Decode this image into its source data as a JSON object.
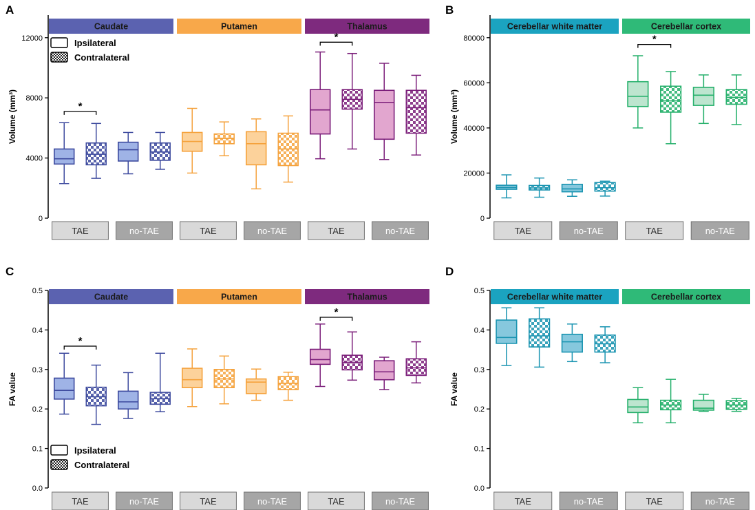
{
  "figure": {
    "legend_ipsi": "Ipsilateral",
    "legend_contra": "Contralateral",
    "group_labels": [
      "TAE",
      "no-TAE"
    ]
  },
  "colors": {
    "caudate": {
      "stroke": "#3d4a9e",
      "fill": "#9fb3e6",
      "header": "#5b62b0"
    },
    "putamen": {
      "stroke": "#f5a23c",
      "fill": "#fcd29b",
      "header": "#f8a84a"
    },
    "thalamus": {
      "stroke": "#7b1e7a",
      "fill": "#e2a6cf",
      "header": "#7e2a7e"
    },
    "cwm": {
      "stroke": "#1a94b1",
      "fill": "#86c8dd",
      "header": "#1ba3c0"
    },
    "cctx": {
      "stroke": "#25b06b",
      "fill": "#bde5cf",
      "header": "#2fba78"
    },
    "tae_box": "#d9d9d9",
    "notae_box": "#a6a6a6"
  },
  "chart_data": [
    {
      "id": "A",
      "panel_label": "A",
      "type": "box",
      "ylabel": "Volume (mm³)",
      "ylim": [
        0,
        13500
      ],
      "yticks": [
        0,
        4000,
        8000,
        12000
      ],
      "ytick_labels": [
        "0",
        "4000",
        "8000",
        "12000"
      ],
      "regions": [
        {
          "name": "Caudate",
          "color_key": "caudate"
        },
        {
          "name": "Putamen",
          "color_key": "putamen"
        },
        {
          "name": "Thalamus",
          "color_key": "thalamus"
        }
      ],
      "groups": [
        "TAE",
        "no-TAE",
        "TAE",
        "no-TAE",
        "TAE",
        "no-TAE"
      ],
      "boxes": [
        {
          "region": "Caudate",
          "group": "TAE",
          "side": "ipsi",
          "min": 2300,
          "q1": 3600,
          "median": 3950,
          "q3": 4600,
          "max": 6350
        },
        {
          "region": "Caudate",
          "group": "TAE",
          "side": "contra",
          "min": 2650,
          "q1": 3550,
          "median": 4250,
          "q3": 5000,
          "max": 6300
        },
        {
          "region": "Caudate",
          "group": "no-TAE",
          "side": "ipsi",
          "min": 2950,
          "q1": 3800,
          "median": 4550,
          "q3": 5050,
          "max": 5700
        },
        {
          "region": "Caudate",
          "group": "no-TAE",
          "side": "contra",
          "min": 3250,
          "q1": 3850,
          "median": 4400,
          "q3": 5000,
          "max": 5700
        },
        {
          "region": "Putamen",
          "group": "TAE",
          "side": "ipsi",
          "min": 3000,
          "q1": 4450,
          "median": 5100,
          "q3": 5700,
          "max": 7300
        },
        {
          "region": "Putamen",
          "group": "TAE",
          "side": "contra",
          "min": 4150,
          "q1": 4950,
          "median": 5300,
          "q3": 5600,
          "max": 6400
        },
        {
          "region": "Putamen",
          "group": "no-TAE",
          "side": "ipsi",
          "min": 1950,
          "q1": 3550,
          "median": 4950,
          "q3": 5750,
          "max": 6600
        },
        {
          "region": "Putamen",
          "group": "no-TAE",
          "side": "contra",
          "min": 2400,
          "q1": 3500,
          "median": 4600,
          "q3": 5650,
          "max": 6800
        },
        {
          "region": "Thalamus",
          "group": "TAE",
          "side": "ipsi",
          "min": 3950,
          "q1": 5600,
          "median": 7200,
          "q3": 8550,
          "max": 11050
        },
        {
          "region": "Thalamus",
          "group": "TAE",
          "side": "contra",
          "min": 4600,
          "q1": 7250,
          "median": 7900,
          "q3": 8550,
          "max": 10950
        },
        {
          "region": "Thalamus",
          "group": "no-TAE",
          "side": "ipsi",
          "min": 3900,
          "q1": 5250,
          "median": 7700,
          "q3": 8500,
          "max": 10300
        },
        {
          "region": "Thalamus",
          "group": "no-TAE",
          "side": "contra",
          "min": 4200,
          "q1": 5650,
          "median": 7350,
          "q3": 8500,
          "max": 9500
        }
      ],
      "significance": [
        {
          "label": "*",
          "from_box": 0,
          "to_box": 1,
          "y": 7100
        },
        {
          "label": "*",
          "from_box": 8,
          "to_box": 9,
          "y": 11700
        }
      ],
      "legend": "top-left"
    },
    {
      "id": "B",
      "panel_label": "B",
      "type": "box",
      "ylabel": "Volume (mm³)",
      "ylim": [
        0,
        90000
      ],
      "yticks": [
        0,
        20000,
        40000,
        60000,
        80000
      ],
      "ytick_labels": [
        "0",
        "20000",
        "40000",
        "60000",
        "80000"
      ],
      "regions": [
        {
          "name": "Cerebellar white matter",
          "color_key": "cwm"
        },
        {
          "name": "Cerebellar cortex",
          "color_key": "cctx"
        }
      ],
      "groups": [
        "TAE",
        "no-TAE",
        "TAE",
        "no-TAE"
      ],
      "boxes": [
        {
          "region": "Cerebellar white matter",
          "group": "TAE",
          "side": "ipsi",
          "min": 9000,
          "q1": 12800,
          "median": 13600,
          "q3": 14600,
          "max": 19200
        },
        {
          "region": "Cerebellar white matter",
          "group": "TAE",
          "side": "contra",
          "min": 9300,
          "q1": 12500,
          "median": 13400,
          "q3": 14500,
          "max": 17800
        },
        {
          "region": "Cerebellar white matter",
          "group": "no-TAE",
          "side": "ipsi",
          "min": 9700,
          "q1": 11700,
          "median": 13000,
          "q3": 15000,
          "max": 17000
        },
        {
          "region": "Cerebellar white matter",
          "group": "no-TAE",
          "side": "contra",
          "min": 9800,
          "q1": 12000,
          "median": 13500,
          "q3": 15800,
          "max": 16400
        },
        {
          "region": "Cerebellar cortex",
          "group": "TAE",
          "side": "ipsi",
          "min": 40000,
          "q1": 49500,
          "median": 54000,
          "q3": 60500,
          "max": 72000
        },
        {
          "region": "Cerebellar cortex",
          "group": "TAE",
          "side": "contra",
          "min": 33000,
          "q1": 47000,
          "median": 52000,
          "q3": 58500,
          "max": 65000
        },
        {
          "region": "Cerebellar cortex",
          "group": "no-TAE",
          "side": "ipsi",
          "min": 42000,
          "q1": 50000,
          "median": 54500,
          "q3": 58000,
          "max": 63500
        },
        {
          "region": "Cerebellar cortex",
          "group": "no-TAE",
          "side": "contra",
          "min": 41500,
          "q1": 50500,
          "median": 53500,
          "q3": 57000,
          "max": 63500
        }
      ],
      "significance": [
        {
          "label": "*",
          "from_box": 4,
          "to_box": 5,
          "y": 77000
        }
      ],
      "legend": "none"
    },
    {
      "id": "C",
      "panel_label": "C",
      "type": "box",
      "ylabel": "FA value",
      "ylim": [
        0,
        0.5
      ],
      "yticks": [
        0,
        0.1,
        0.2,
        0.3,
        0.4,
        0.5
      ],
      "ytick_labels": [
        "0.0",
        "0.1",
        "0.2",
        "0.3",
        "0.4",
        "0.5"
      ],
      "regions": [
        {
          "name": "Caudate",
          "color_key": "caudate"
        },
        {
          "name": "Putamen",
          "color_key": "putamen"
        },
        {
          "name": "Thalamus",
          "color_key": "thalamus"
        }
      ],
      "groups": [
        "TAE",
        "no-TAE",
        "TAE",
        "no-TAE",
        "TAE",
        "no-TAE"
      ],
      "boxes": [
        {
          "region": "Caudate",
          "group": "TAE",
          "side": "ipsi",
          "min": 0.187,
          "q1": 0.225,
          "median": 0.247,
          "q3": 0.278,
          "max": 0.341
        },
        {
          "region": "Caudate",
          "group": "TAE",
          "side": "contra",
          "min": 0.161,
          "q1": 0.208,
          "median": 0.231,
          "q3": 0.255,
          "max": 0.311
        },
        {
          "region": "Caudate",
          "group": "no-TAE",
          "side": "ipsi",
          "min": 0.176,
          "q1": 0.2,
          "median": 0.218,
          "q3": 0.245,
          "max": 0.292
        },
        {
          "region": "Caudate",
          "group": "no-TAE",
          "side": "contra",
          "min": 0.193,
          "q1": 0.212,
          "median": 0.226,
          "q3": 0.242,
          "max": 0.341
        },
        {
          "region": "Putamen",
          "group": "TAE",
          "side": "ipsi",
          "min": 0.206,
          "q1": 0.254,
          "median": 0.274,
          "q3": 0.303,
          "max": 0.352
        },
        {
          "region": "Putamen",
          "group": "TAE",
          "side": "contra",
          "min": 0.213,
          "q1": 0.254,
          "median": 0.276,
          "q3": 0.3,
          "max": 0.334
        },
        {
          "region": "Putamen",
          "group": "no-TAE",
          "side": "ipsi",
          "min": 0.222,
          "q1": 0.239,
          "median": 0.268,
          "q3": 0.276,
          "max": 0.301
        },
        {
          "region": "Putamen",
          "group": "no-TAE",
          "side": "contra",
          "min": 0.222,
          "q1": 0.249,
          "median": 0.265,
          "q3": 0.282,
          "max": 0.293
        },
        {
          "region": "Thalamus",
          "group": "TAE",
          "side": "ipsi",
          "min": 0.257,
          "q1": 0.313,
          "median": 0.325,
          "q3": 0.351,
          "max": 0.415
        },
        {
          "region": "Thalamus",
          "group": "TAE",
          "side": "contra",
          "min": 0.273,
          "q1": 0.299,
          "median": 0.318,
          "q3": 0.336,
          "max": 0.395
        },
        {
          "region": "Thalamus",
          "group": "no-TAE",
          "side": "ipsi",
          "min": 0.249,
          "q1": 0.274,
          "median": 0.294,
          "q3": 0.322,
          "max": 0.331
        },
        {
          "region": "Thalamus",
          "group": "no-TAE",
          "side": "contra",
          "min": 0.266,
          "q1": 0.285,
          "median": 0.304,
          "q3": 0.327,
          "max": 0.37
        }
      ],
      "significance": [
        {
          "label": "*",
          "from_box": 0,
          "to_box": 1,
          "y": 0.359
        },
        {
          "label": "*",
          "from_box": 8,
          "to_box": 9,
          "y": 0.432
        }
      ],
      "legend": "bottom-left"
    },
    {
      "id": "D",
      "panel_label": "D",
      "type": "box",
      "ylabel": "FA value",
      "ylim": [
        0,
        0.5
      ],
      "yticks": [
        0,
        0.1,
        0.2,
        0.3,
        0.4,
        0.5
      ],
      "ytick_labels": [
        "0.0",
        "0.1",
        "0.2",
        "0.3",
        "0.4",
        "0.5"
      ],
      "regions": [
        {
          "name": "Cerebellar white matter",
          "color_key": "cwm"
        },
        {
          "name": "Cerebellar cortex",
          "color_key": "cctx"
        }
      ],
      "groups": [
        "TAE",
        "no-TAE",
        "TAE",
        "no-TAE"
      ],
      "boxes": [
        {
          "region": "Cerebellar white matter",
          "group": "TAE",
          "side": "ipsi",
          "min": 0.31,
          "q1": 0.366,
          "median": 0.381,
          "q3": 0.425,
          "max": 0.456
        },
        {
          "region": "Cerebellar white matter",
          "group": "TAE",
          "side": "contra",
          "min": 0.306,
          "q1": 0.357,
          "median": 0.385,
          "q3": 0.428,
          "max": 0.456
        },
        {
          "region": "Cerebellar white matter",
          "group": "no-TAE",
          "side": "ipsi",
          "min": 0.32,
          "q1": 0.344,
          "median": 0.37,
          "q3": 0.389,
          "max": 0.415
        },
        {
          "region": "Cerebellar white matter",
          "group": "no-TAE",
          "side": "contra",
          "min": 0.317,
          "q1": 0.344,
          "median": 0.365,
          "q3": 0.387,
          "max": 0.408
        },
        {
          "region": "Cerebellar cortex",
          "group": "TAE",
          "side": "ipsi",
          "min": 0.165,
          "q1": 0.191,
          "median": 0.205,
          "q3": 0.224,
          "max": 0.254
        },
        {
          "region": "Cerebellar cortex",
          "group": "TAE",
          "side": "contra",
          "min": 0.165,
          "q1": 0.198,
          "median": 0.21,
          "q3": 0.222,
          "max": 0.275
        },
        {
          "region": "Cerebellar cortex",
          "group": "no-TAE",
          "side": "ipsi",
          "min": 0.194,
          "q1": 0.197,
          "median": 0.202,
          "q3": 0.222,
          "max": 0.237
        },
        {
          "region": "Cerebellar cortex",
          "group": "no-TAE",
          "side": "contra",
          "min": 0.194,
          "q1": 0.199,
          "median": 0.21,
          "q3": 0.221,
          "max": 0.227
        }
      ],
      "significance": [],
      "legend": "none"
    }
  ]
}
